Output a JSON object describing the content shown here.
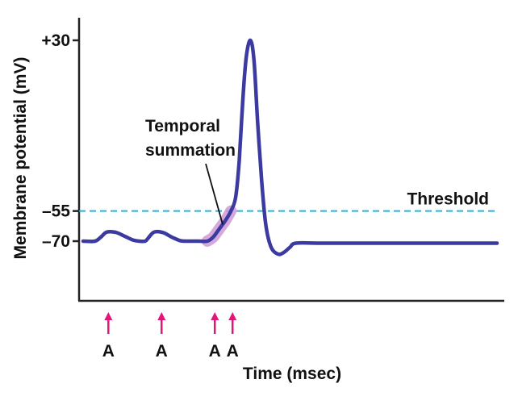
{
  "chart_data": {
    "type": "line",
    "xlabel": "Time (msec)",
    "ylabel": "Membrane potential (mV)",
    "y_ticks": [
      {
        "value": 30,
        "label": "+30"
      },
      {
        "value": -55,
        "label": "–55"
      },
      {
        "value": -70,
        "label": "–70"
      }
    ],
    "series": [
      {
        "color": "#3a3aa0",
        "points": [
          [
            0,
            -70
          ],
          [
            2,
            -70
          ],
          [
            3,
            -68
          ],
          [
            4,
            -65.5
          ],
          [
            5.5,
            -65.6
          ],
          [
            7,
            -67.5
          ],
          [
            8.5,
            -69.5
          ],
          [
            9.5,
            -70
          ],
          [
            10.5,
            -70
          ],
          [
            11,
            -68.5
          ],
          [
            12,
            -65.5
          ],
          [
            13.5,
            -65.7
          ],
          [
            15,
            -68
          ],
          [
            16.5,
            -69.8
          ],
          [
            18,
            -70
          ],
          [
            19.5,
            -70
          ],
          [
            21,
            -70
          ],
          [
            22,
            -68
          ],
          [
            23,
            -64
          ],
          [
            24,
            -60
          ],
          [
            25,
            -55
          ],
          [
            25.8,
            -48
          ],
          [
            26.4,
            -30
          ],
          [
            27,
            0
          ],
          [
            27.6,
            22
          ],
          [
            28.3,
            30
          ],
          [
            28.9,
            20
          ],
          [
            29.5,
            -10
          ],
          [
            30.2,
            -40
          ],
          [
            30.9,
            -62
          ],
          [
            31.8,
            -73
          ],
          [
            33,
            -76.5
          ],
          [
            34,
            -75.5
          ],
          [
            35,
            -73
          ],
          [
            36,
            -71
          ],
          [
            40,
            -71
          ],
          [
            48,
            -71
          ],
          [
            60,
            -71
          ],
          [
            70,
            -71
          ]
        ]
      }
    ],
    "reference_lines": [
      {
        "value": -55,
        "label": "Threshold",
        "style": "dashed",
        "color": "#27b4dc"
      }
    ],
    "annotations": [
      {
        "text_lines": [
          "Temporal",
          "summation"
        ],
        "points_to_x": 23.6,
        "highlight_x_range": [
          21,
          25.6
        ],
        "highlight_color": "#cf9ad6"
      }
    ],
    "stimuli": {
      "label": "A",
      "x": [
        4,
        13,
        22,
        25
      ],
      "color": "#e0177a"
    }
  }
}
